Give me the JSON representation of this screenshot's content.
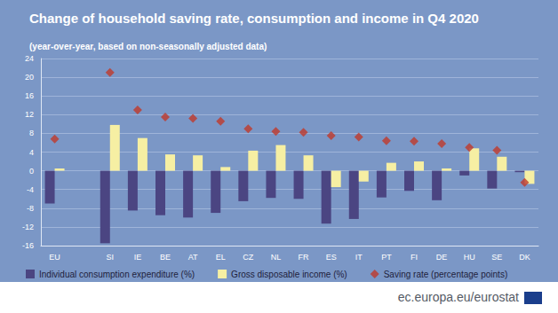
{
  "chart_data": {
    "type": "bar",
    "title": "Change of household saving rate, consumption and income in Q4 2020",
    "subtitle": "(year-over-year, based on non-seasonally adjusted data)",
    "annotations": [
      "ec.europa.eu/eurostat"
    ],
    "categories": [
      "EU",
      null,
      "SI",
      "IE",
      "BE",
      "AT",
      "EL",
      "CZ",
      "NL",
      "FR",
      "ES",
      "IT",
      "PT",
      "FI",
      "DE",
      "HU",
      "SE",
      "DK"
    ],
    "series": [
      {
        "name": "Individual consumption expenditure (%)",
        "type": "bar",
        "color": "#4b4582",
        "values": [
          -7,
          null,
          -15.5,
          -8.5,
          -9.5,
          -10,
          -9,
          -6.5,
          -5.8,
          -6,
          -11.3,
          -10.3,
          -5.7,
          -4.3,
          -6.3,
          -1,
          -3.8,
          -0.3
        ]
      },
      {
        "name": "Gross disposable income (%)",
        "type": "bar",
        "color": "#f6efa3",
        "values": [
          0.5,
          null,
          9.8,
          7,
          3.5,
          3.3,
          0.8,
          4.3,
          5.5,
          3.3,
          -3.5,
          -2.3,
          1.7,
          2,
          0.5,
          4.8,
          3,
          -2.8
        ]
      },
      {
        "name": "Saving rate (percentage points)",
        "type": "scatter",
        "marker": "diamond",
        "color": "#c0392b",
        "values": [
          6.8,
          null,
          21,
          13,
          11.5,
          11.2,
          10.6,
          9,
          8.4,
          8.2,
          7.5,
          7.2,
          6.4,
          6.3,
          5.8,
          5,
          4.4,
          -2.5
        ]
      }
    ],
    "ylim": [
      -16,
      24
    ],
    "yticks": [
      -16,
      -12,
      -8,
      -4,
      0,
      4,
      8,
      12,
      16,
      20,
      24
    ],
    "grid": true,
    "legend": "bottom"
  }
}
